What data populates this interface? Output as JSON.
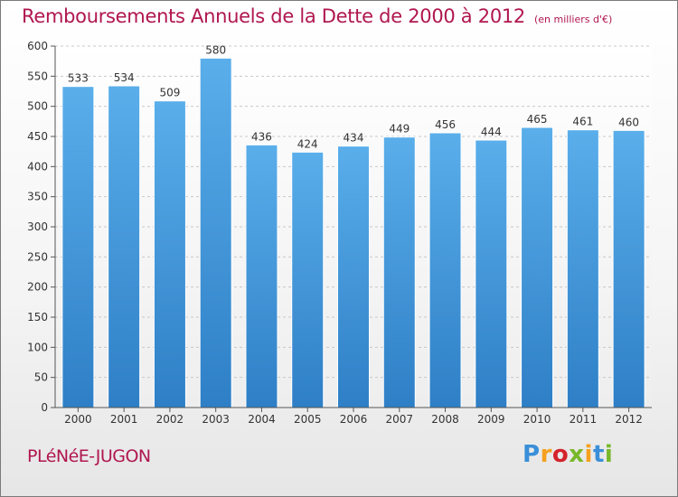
{
  "title": "Remboursements Annuels de la Dette de 2000 à 2012",
  "subtitle": "(en milliers d'€)",
  "commune": "PLéNéE-JUGON",
  "logo": {
    "text": "Proxiti",
    "letters": [
      {
        "ch": "P",
        "color": "#3a8fd8"
      },
      {
        "ch": "r",
        "color": "#f5a01f"
      },
      {
        "ch": "o",
        "color": "#d4232c"
      },
      {
        "ch": "x",
        "color": "#77b82a"
      },
      {
        "ch": "i",
        "color": "#f5a01f"
      },
      {
        "ch": "t",
        "color": "#3a8fd8"
      },
      {
        "ch": "i",
        "color": "#77b82a"
      }
    ]
  },
  "colors": {
    "bar_top": "#5aaeea",
    "bar_bottom": "#2e7fc6",
    "title": "#b0164f",
    "grid": "#c8c8c8"
  },
  "chart_data": {
    "type": "bar",
    "title": "Remboursements Annuels de la Dette de 2000 à 2012",
    "subtitle": "(en milliers d'€)",
    "categories": [
      "2000",
      "2001",
      "2002",
      "2003",
      "2004",
      "2005",
      "2006",
      "2007",
      "2008",
      "2009",
      "2010",
      "2011",
      "2012"
    ],
    "values": [
      533,
      534,
      509,
      580,
      436,
      424,
      434,
      449,
      456,
      444,
      465,
      461,
      460
    ],
    "ylim": [
      0,
      600
    ],
    "yticks": [
      0,
      50,
      100,
      150,
      200,
      250,
      300,
      350,
      400,
      450,
      500,
      550,
      600
    ],
    "grid": true,
    "data_labels": true
  }
}
